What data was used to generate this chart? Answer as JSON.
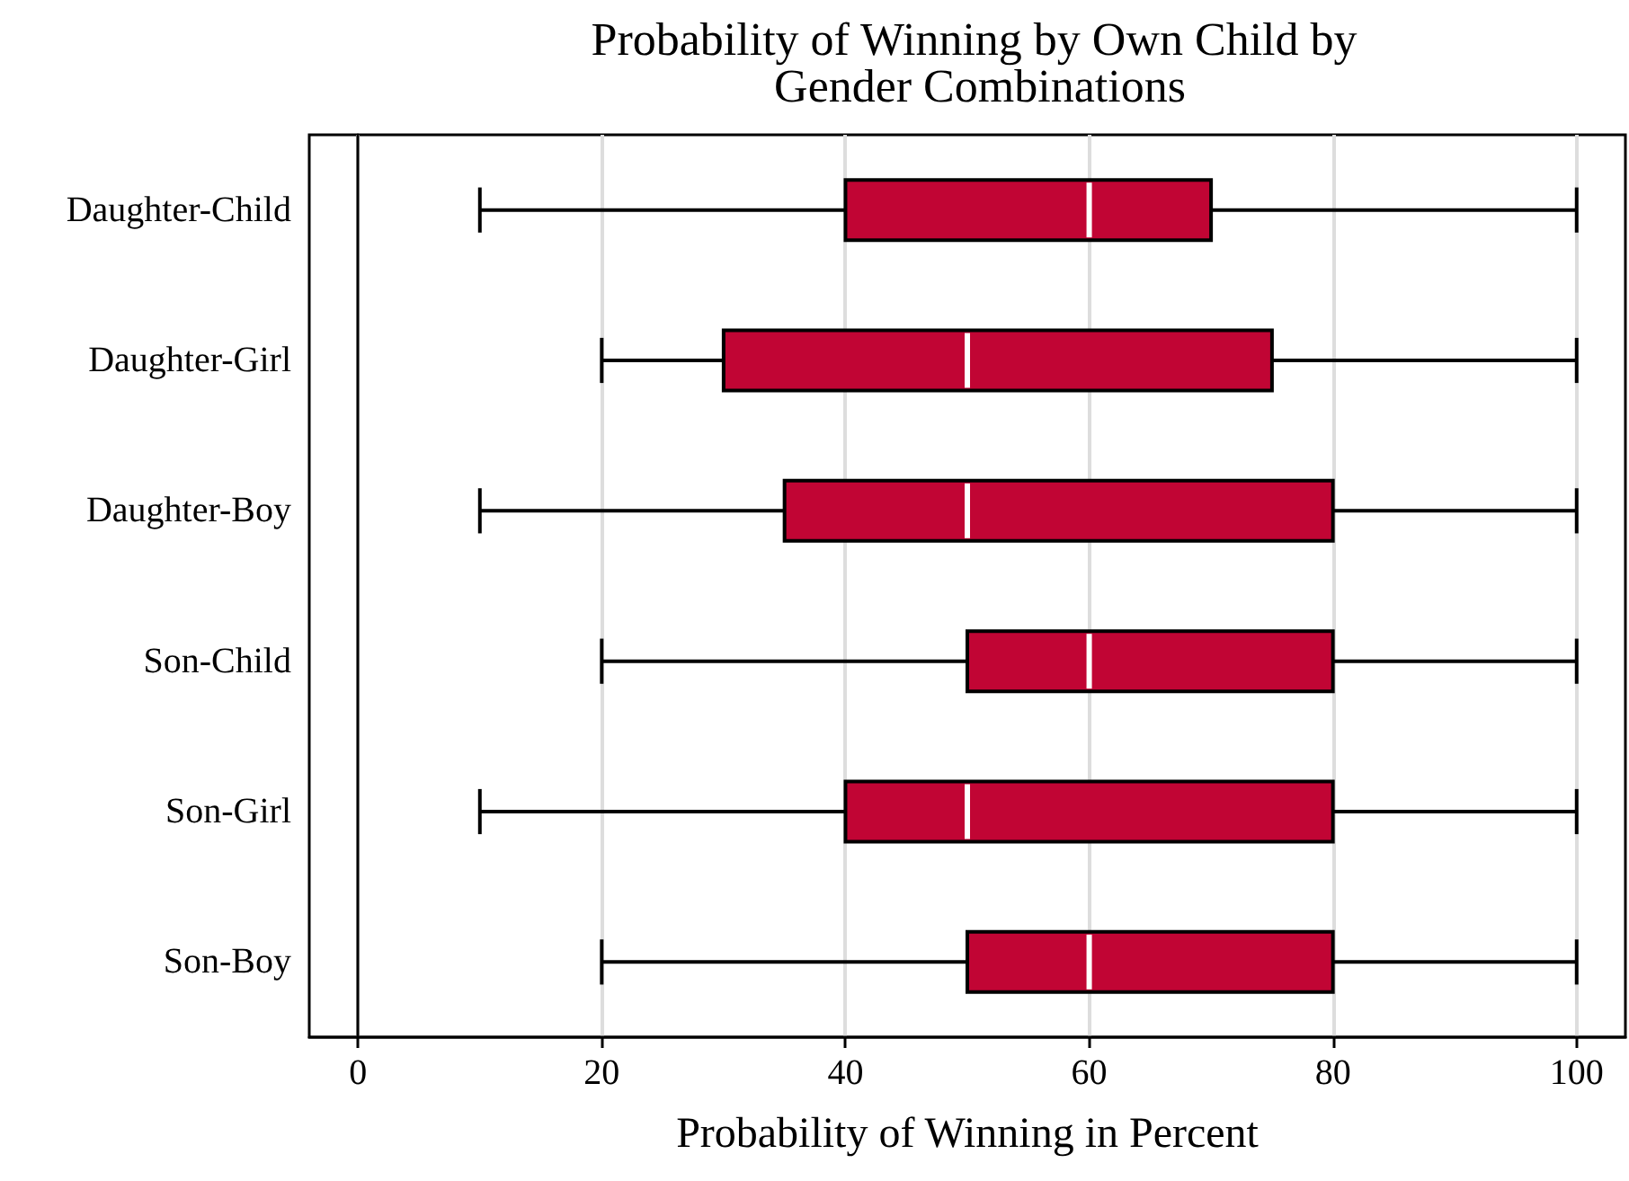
{
  "chart_data": {
    "type": "box",
    "title": "Probability of Winning by Own Child by Gender Combinations",
    "xlabel": "Probability of Winning in Percent",
    "orientation": "horizontal",
    "color": "#c10534",
    "grid": "x",
    "categories": [
      "Daughter-Child",
      "Daughter-Girl",
      "Daughter-Boy",
      "Son-Child",
      "Son-Girl",
      "Son-Boy"
    ],
    "boxes": [
      {
        "low": 10,
        "q1": 40,
        "median": 60,
        "q3": 70,
        "high": 100
      },
      {
        "low": 20,
        "q1": 30,
        "median": 50,
        "q3": 75,
        "high": 100
      },
      {
        "low": 10,
        "q1": 35,
        "median": 50,
        "q3": 80,
        "high": 100
      },
      {
        "low": 20,
        "q1": 50,
        "median": 60,
        "q3": 80,
        "high": 100
      },
      {
        "low": 10,
        "q1": 40,
        "median": 50,
        "q3": 80,
        "high": 100
      },
      {
        "low": 20,
        "q1": 50,
        "median": 60,
        "q3": 80,
        "high": 100
      }
    ],
    "xlim": [
      -4,
      104
    ],
    "xticks": [
      0,
      20,
      40,
      60,
      80,
      100
    ]
  }
}
